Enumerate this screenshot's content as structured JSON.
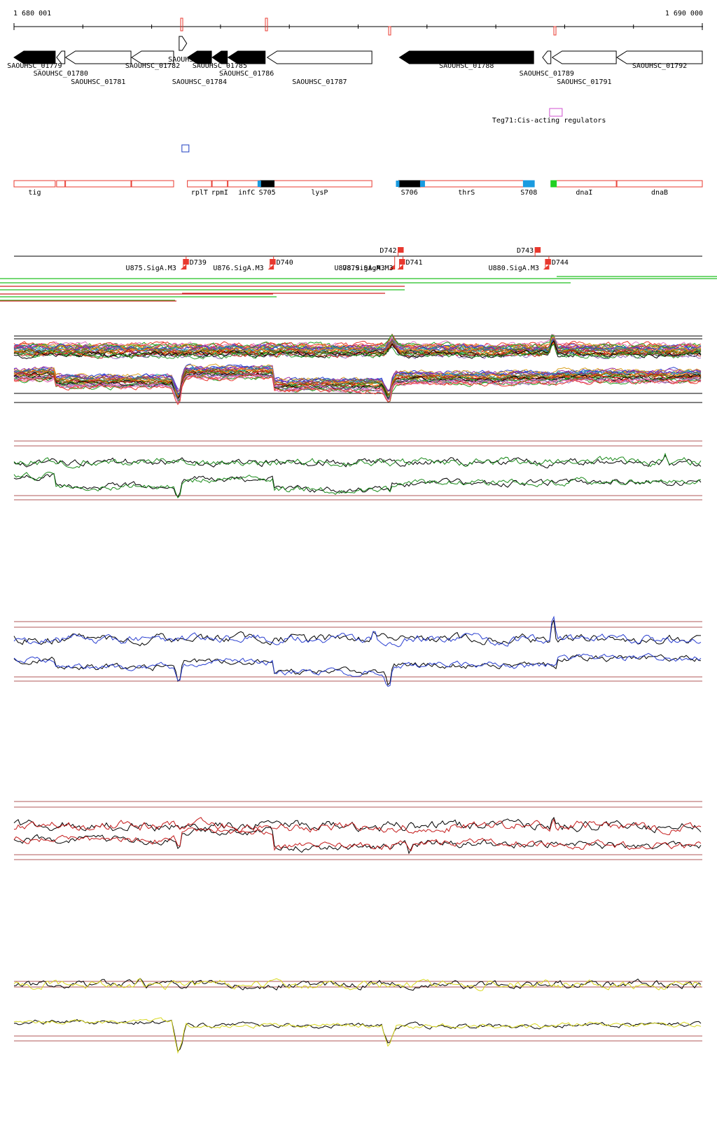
{
  "coordinates": {
    "start_label": "1 680 001",
    "end_label": "1 690 000",
    "start": 1680001,
    "end": 1690000
  },
  "colors": {
    "gene_fill": "#000000",
    "gene_stroke": "#000000",
    "operon": "#e8392f",
    "sigma": "#e8392f",
    "teg": "#d050d0",
    "blue_box": "#1f3fc0",
    "black_seg": "#000000",
    "cyan_seg": "#1a9be0",
    "green_seg": "#22d022",
    "ref_line": "#b05a5a",
    "green_track": "#1a8a1a",
    "blue_track": "#2a3fd0",
    "red_track": "#c41a1a",
    "yellow_track": "#d8d820"
  },
  "genes": [
    {
      "id": "SAOUHSC_01779",
      "label": "SAOUHSC_01779",
      "start": 1680001,
      "end": 1680600,
      "strand": "-",
      "filled": true,
      "row": 0
    },
    {
      "id": "SAOUHSC_01780",
      "label": "SAOUHSC_01780",
      "start": 1680620,
      "end": 1680740,
      "strand": "-",
      "filled": false,
      "row": 1
    },
    {
      "id": "SAOUHSC_01781",
      "label": "SAOUHSC_01781",
      "start": 1680750,
      "end": 1681700,
      "strand": "-",
      "filled": false,
      "row": 2
    },
    {
      "id": "SAOUHSC_01782",
      "label": "SAOUHSC_01782",
      "start": 1681710,
      "end": 1682320,
      "strand": "-",
      "filled": false,
      "row": 0
    },
    {
      "id": "SAOUHSC_01783",
      "label": "SAOUHSC",
      "start": 1682400,
      "end": 1682510,
      "strand": "+",
      "filled": false,
      "row": -1
    },
    {
      "id": "SAOUHSC_01784",
      "label": "SAOUHSC_01784",
      "start": 1682520,
      "end": 1682870,
      "strand": "-",
      "filled": true,
      "row": 2
    },
    {
      "id": "SAOUHSC_01785",
      "label": "SAOUHSC_01785",
      "start": 1682880,
      "end": 1683100,
      "strand": "-",
      "filled": true,
      "row": 0
    },
    {
      "id": "SAOUHSC_01786",
      "label": "SAOUHSC_01786",
      "start": 1683110,
      "end": 1683650,
      "strand": "-",
      "filled": true,
      "row": 1
    },
    {
      "id": "SAOUHSC_01787",
      "label": "SAOUHSC_01787",
      "start": 1683680,
      "end": 1685200,
      "strand": "-",
      "filled": false,
      "row": 2
    },
    {
      "id": "SAOUHSC_01788",
      "label": "SAOUHSC_01788",
      "start": 1685600,
      "end": 1687550,
      "strand": "-",
      "filled": true,
      "row": 0
    },
    {
      "id": "SAOUHSC_01789",
      "label": "SAOUHSC_01789",
      "start": 1687680,
      "end": 1687800,
      "strand": "-",
      "filled": false,
      "row": 1
    },
    {
      "id": "SAOUHSC_01791",
      "label": "SAOUHSC_01791",
      "start": 1687820,
      "end": 1688750,
      "strand": "-",
      "filled": false,
      "row": 2
    },
    {
      "id": "SAOUHSC_01792",
      "label": "SAOUHSC_01792",
      "start": 1688760,
      "end": 1690000,
      "strand": "-",
      "filled": false,
      "row": 0
    }
  ],
  "teg": {
    "label": "Teg71:Cis-acting regulators",
    "start": 1687700,
    "end": 1687900
  },
  "blue_box": {
    "start": 1682420,
    "end": 1682520
  },
  "operons": [
    {
      "label": "tig",
      "start": 1680001,
      "end": 1680600
    },
    {
      "label": "",
      "start": 1680620,
      "end": 1680740
    },
    {
      "label": "",
      "start": 1680750,
      "end": 1681700
    },
    {
      "label": "",
      "start": 1681710,
      "end": 1682320
    },
    {
      "label": "rplT",
      "start": 1682520,
      "end": 1682870
    },
    {
      "label": "rpmI",
      "start": 1682880,
      "end": 1683100
    },
    {
      "label": "infC",
      "start": 1683110,
      "end": 1683650
    },
    {
      "label": "lysP",
      "start": 1683680,
      "end": 1685200
    },
    {
      "label": "thrS",
      "start": 1685600,
      "end": 1687550
    },
    {
      "label": "dnaI",
      "start": 1687820,
      "end": 1688750
    },
    {
      "label": "dnaB",
      "start": 1688760,
      "end": 1690000
    }
  ],
  "segments": [
    {
      "label": "S705",
      "start": 1683580,
      "end": 1683780,
      "color": "black"
    },
    {
      "label": "S706",
      "start": 1685590,
      "end": 1685900,
      "color": "black"
    },
    {
      "label": "S708",
      "start": 1687400,
      "end": 1687560,
      "color": "cyan"
    },
    {
      "label": "",
      "start": 1687800,
      "end": 1687880,
      "color": "green"
    }
  ],
  "sigma_sites": [
    {
      "label": "U875.SigA.M3",
      "pos": 1682420,
      "dir": "up"
    },
    {
      "label": "D739",
      "pos": 1682440,
      "dir": "down"
    },
    {
      "label": "U876.SigA.M3",
      "pos": 1683690,
      "dir": "up"
    },
    {
      "label": "D740",
      "pos": 1683700,
      "dir": "down"
    },
    {
      "label": "U878.SigA.M3",
      "pos": 1685450,
      "dir": "up"
    },
    {
      "label": "D742",
      "pos": 1685560,
      "dir": "down"
    },
    {
      "label": "U879.SigA.M3",
      "pos": 1685570,
      "dir": "up"
    },
    {
      "label": "D741",
      "pos": 1685580,
      "dir": "down"
    },
    {
      "label": "D743",
      "pos": 1687550,
      "dir": "down"
    },
    {
      "label": "U880.SigA.M3",
      "pos": 1687690,
      "dir": "up"
    },
    {
      "label": "D744",
      "pos": 1687700,
      "dir": "down"
    }
  ]
}
